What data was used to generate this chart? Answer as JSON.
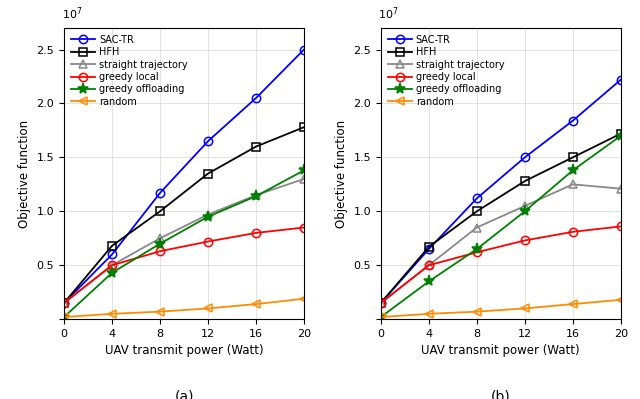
{
  "x": [
    0,
    4,
    8,
    12,
    16,
    20
  ],
  "subplot_a": {
    "SAC-TR": [
      0.15,
      0.6,
      1.17,
      1.65,
      2.05,
      2.5
    ],
    "HFH": [
      0.15,
      0.68,
      1.0,
      1.35,
      1.6,
      1.78
    ],
    "straight": [
      0.15,
      0.5,
      0.75,
      0.97,
      1.15,
      1.3
    ],
    "greedy_local": [
      0.15,
      0.5,
      0.63,
      0.72,
      0.8,
      0.85
    ],
    "greedy_offloading": [
      0.02,
      0.43,
      0.7,
      0.95,
      1.14,
      1.38
    ],
    "random": [
      0.02,
      0.05,
      0.07,
      0.1,
      0.14,
      0.19
    ]
  },
  "subplot_b": {
    "SAC-TR": [
      0.15,
      0.65,
      1.12,
      1.5,
      1.84,
      2.22
    ],
    "HFH": [
      0.15,
      0.67,
      1.0,
      1.28,
      1.5,
      1.72
    ],
    "straight": [
      0.15,
      0.5,
      0.85,
      1.05,
      1.25,
      1.21
    ],
    "greedy_local": [
      0.15,
      0.5,
      0.62,
      0.73,
      0.81,
      0.86
    ],
    "greedy_offloading": [
      0.02,
      0.35,
      0.65,
      1.0,
      1.38,
      1.7
    ],
    "random": [
      0.02,
      0.05,
      0.07,
      0.1,
      0.14,
      0.18
    ]
  },
  "colors": {
    "SAC-TR": "#0000ff",
    "HFH": "#000000",
    "straight": "#888888",
    "greedy_local": "#ff0000",
    "greedy_offloading": "#008000",
    "random": "#ff8c00"
  },
  "markers": {
    "SAC-TR": "o",
    "HFH": "s",
    "straight": "^",
    "greedy_local": "o",
    "greedy_offloading": "*",
    "random": "<"
  },
  "filled": {
    "SAC-TR": false,
    "HFH": false,
    "straight": false,
    "greedy_local": false,
    "greedy_offloading": true,
    "random": false
  },
  "labels": {
    "SAC-TR": "SAC-TR",
    "HFH": "HFH",
    "straight": "straight trajectory",
    "greedy_local": "greedy local",
    "greedy_offloading": "greedy offloading",
    "random": "random"
  },
  "ylabel": "Objective function",
  "xlabel": "UAV transmit power (Watt)",
  "ylim": [
    0,
    2.7
  ],
  "xlim": [
    0,
    20
  ],
  "xticks": [
    0,
    4,
    8,
    12,
    16,
    20
  ],
  "yticks": [
    0.0,
    0.5,
    1.0,
    1.5,
    2.0,
    2.5
  ],
  "label_a": "(a)",
  "label_b": "(b)"
}
